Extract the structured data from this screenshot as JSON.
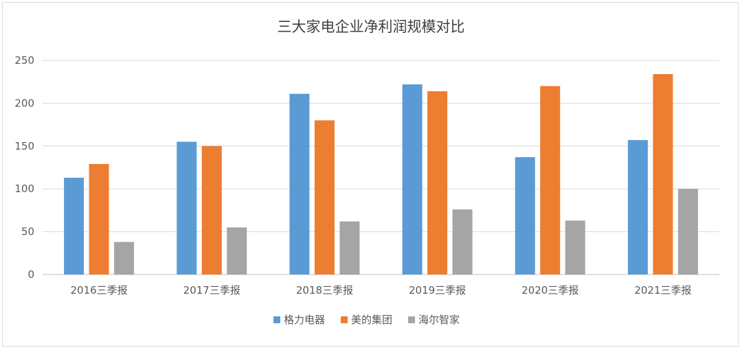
{
  "chart_data": {
    "type": "bar",
    "title": "三大家电企业净利润规模对比",
    "categories": [
      "2016三季报",
      "2017三季报",
      "2018三季报",
      "2019三季报",
      "2020三季报",
      "2021三季报"
    ],
    "series": [
      {
        "name": "格力电器",
        "color": "#5b9bd5",
        "values": [
          113,
          155,
          211,
          222,
          137,
          157
        ]
      },
      {
        "name": "美的集团",
        "color": "#ed7d31",
        "values": [
          129,
          150,
          180,
          214,
          220,
          234
        ]
      },
      {
        "name": "海尔智家",
        "color": "#a5a5a5",
        "values": [
          38,
          55,
          62,
          76,
          63,
          100
        ]
      }
    ],
    "ylim": [
      0,
      250
    ],
    "yticks": [
      0,
      50,
      100,
      150,
      200,
      250
    ],
    "grid": true,
    "legend_position": "bottom"
  }
}
